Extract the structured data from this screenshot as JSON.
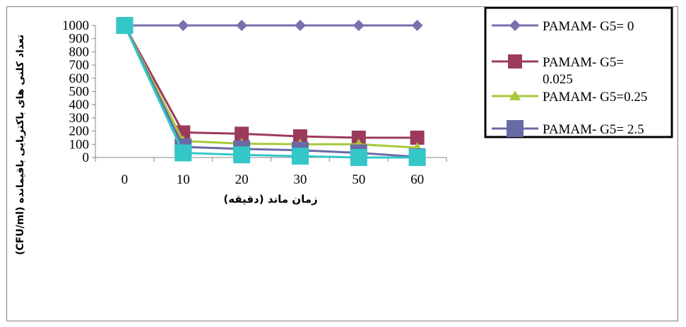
{
  "chart_data": {
    "type": "line",
    "categories": [
      "0",
      "10",
      "20",
      "30",
      "50",
      "60"
    ],
    "xlabel": "زمان ماند (دقیقه)",
    "ylabel": "تعداد کلنی های باکتریایی باقیمانده  (CFU/ml)",
    "ylim": [
      0,
      1000
    ],
    "yticks": [
      "0",
      "100",
      "200",
      "300",
      "400",
      "500",
      "600",
      "700",
      "800",
      "900",
      "1000"
    ],
    "grid": false,
    "legend_position": "top-right",
    "series": [
      {
        "name": "PAMAM- G5= 0",
        "color": "#7b6fae",
        "marker": "diamond",
        "values": [
          1000,
          1000,
          1000,
          1000,
          1000,
          1000
        ]
      },
      {
        "name": "PAMAM- G5= 0.025",
        "color": "#9c3a5e",
        "marker": "square",
        "values": [
          1000,
          190,
          180,
          160,
          150,
          150
        ]
      },
      {
        "name": "PAMAM- G5=0.25",
        "color": "#a8c93a",
        "marker": "triangle",
        "values": [
          1000,
          125,
          105,
          100,
          100,
          75
        ]
      },
      {
        "name": "PAMAM- G5= 2.5",
        "color": "#6a6aa6",
        "marker": "square-large",
        "values": [
          1000,
          80,
          65,
          55,
          35,
          5
        ]
      },
      {
        "name": "",
        "color": "#33c7c7",
        "marker": "square-large",
        "values": [
          1000,
          35,
          20,
          10,
          0,
          0
        ]
      }
    ]
  }
}
